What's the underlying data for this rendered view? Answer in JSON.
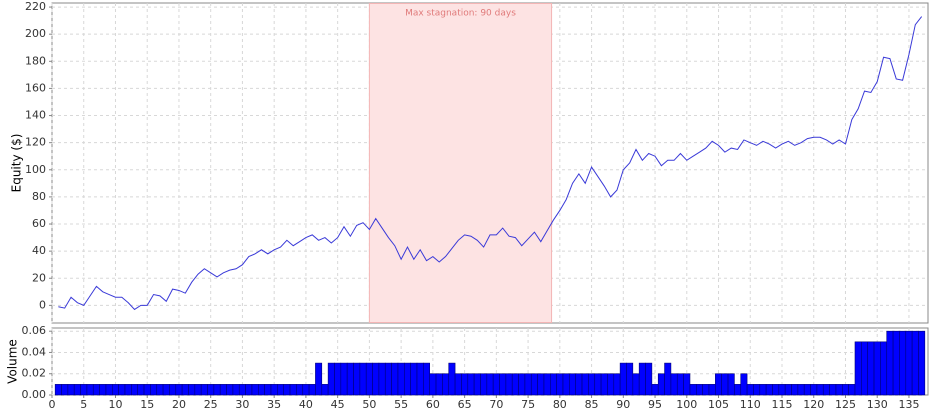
{
  "chart_data": [
    {
      "type": "line",
      "ylabel": "Equity ($)",
      "color": "#3a3ad8",
      "grid": true,
      "highlight": {
        "x": [
          50,
          78.7
        ],
        "label": "Max stagnation: 90 days",
        "color": "#fde3e3"
      },
      "x": [
        1,
        2,
        3,
        4,
        5,
        6,
        7,
        8,
        9,
        10,
        11,
        12,
        13,
        14,
        15,
        16,
        17,
        18,
        19,
        20,
        21,
        22,
        23,
        24,
        25,
        26,
        27,
        28,
        29,
        30,
        31,
        32,
        33,
        34,
        35,
        36,
        37,
        38,
        39,
        40,
        41,
        42,
        43,
        44,
        45,
        46,
        47,
        48,
        49,
        50,
        51,
        52,
        53,
        54,
        55,
        56,
        57,
        58,
        59,
        60,
        61,
        62,
        63,
        64,
        65,
        66,
        67,
        68,
        69,
        70,
        71,
        72,
        73,
        74,
        75,
        76,
        77,
        78,
        79,
        80,
        81,
        82,
        83,
        84,
        85,
        86,
        87,
        88,
        89,
        90,
        91,
        92,
        93,
        94,
        95,
        96,
        97,
        98,
        99,
        100,
        101,
        102,
        103,
        104,
        105,
        106,
        107,
        108,
        109,
        110,
        111,
        112,
        113,
        114,
        115,
        116,
        117,
        118,
        119,
        120,
        121,
        122,
        123,
        124,
        125,
        126,
        127,
        128,
        129,
        130,
        131,
        132,
        133,
        134,
        135,
        136,
        137
      ],
      "values": [
        -1,
        -2,
        6,
        2,
        0,
        7,
        14,
        10,
        8,
        6,
        6,
        2,
        -3,
        0,
        0,
        8,
        7,
        3,
        12,
        11,
        9,
        17,
        23,
        27,
        24,
        21,
        24,
        26,
        27,
        30,
        36,
        38,
        41,
        38,
        41,
        43,
        48,
        44,
        47,
        50,
        52,
        48,
        50,
        46,
        50,
        58,
        51,
        59,
        61,
        56,
        64,
        57,
        50,
        44,
        34,
        43,
        34,
        41,
        33,
        36,
        32,
        36,
        42,
        48,
        52,
        51,
        48,
        43,
        52,
        52,
        57,
        51,
        50,
        44,
        49,
        54,
        47,
        55,
        63,
        70,
        78,
        90,
        97,
        90,
        102,
        95,
        88,
        80,
        85,
        100,
        105,
        115,
        107,
        112,
        110,
        103,
        107,
        107,
        112,
        107,
        110,
        113,
        116,
        121,
        118,
        113,
        116,
        115,
        122,
        120,
        118,
        121,
        119,
        116,
        119,
        121,
        118,
        120,
        123,
        124,
        124,
        122,
        119,
        122,
        119,
        137,
        145,
        158,
        157,
        165,
        183,
        182,
        167,
        166,
        185,
        207,
        213
      ],
      "xlim": [
        0,
        138
      ],
      "ylim": [
        -13,
        223
      ],
      "yticks": [
        0,
        20,
        40,
        60,
        80,
        100,
        120,
        140,
        160,
        180,
        200,
        220
      ]
    },
    {
      "type": "bar",
      "ylabel": "Volume",
      "color": "#0000ff",
      "grid": true,
      "x": [
        1,
        2,
        3,
        4,
        5,
        6,
        7,
        8,
        9,
        10,
        11,
        12,
        13,
        14,
        15,
        16,
        17,
        18,
        19,
        20,
        21,
        22,
        23,
        24,
        25,
        26,
        27,
        28,
        29,
        30,
        31,
        32,
        33,
        34,
        35,
        36,
        37,
        38,
        39,
        40,
        41,
        42,
        43,
        44,
        45,
        46,
        47,
        48,
        49,
        50,
        51,
        52,
        53,
        54,
        55,
        56,
        57,
        58,
        59,
        60,
        61,
        62,
        63,
        64,
        65,
        66,
        67,
        68,
        69,
        70,
        71,
        72,
        73,
        74,
        75,
        76,
        77,
        78,
        79,
        80,
        81,
        82,
        83,
        84,
        85,
        86,
        87,
        88,
        89,
        90,
        91,
        92,
        93,
        94,
        95,
        96,
        97,
        98,
        99,
        100,
        101,
        102,
        103,
        104,
        105,
        106,
        107,
        108,
        109,
        110,
        111,
        112,
        113,
        114,
        115,
        116,
        117,
        118,
        119,
        120,
        121,
        122,
        123,
        124,
        125,
        126,
        127,
        128,
        129,
        130,
        131,
        132,
        133,
        134,
        135,
        136,
        137
      ],
      "values": [
        0.01,
        0.01,
        0.01,
        0.01,
        0.01,
        0.01,
        0.01,
        0.01,
        0.01,
        0.01,
        0.01,
        0.01,
        0.01,
        0.01,
        0.01,
        0.01,
        0.01,
        0.01,
        0.01,
        0.01,
        0.01,
        0.01,
        0.01,
        0.01,
        0.01,
        0.01,
        0.01,
        0.01,
        0.01,
        0.01,
        0.01,
        0.01,
        0.01,
        0.01,
        0.01,
        0.01,
        0.01,
        0.01,
        0.01,
        0.01,
        0.01,
        0.03,
        0.01,
        0.03,
        0.03,
        0.03,
        0.03,
        0.03,
        0.03,
        0.03,
        0.03,
        0.03,
        0.03,
        0.03,
        0.03,
        0.03,
        0.03,
        0.03,
        0.03,
        0.02,
        0.02,
        0.02,
        0.03,
        0.02,
        0.02,
        0.02,
        0.02,
        0.02,
        0.02,
        0.02,
        0.02,
        0.02,
        0.02,
        0.02,
        0.02,
        0.02,
        0.02,
        0.02,
        0.02,
        0.02,
        0.02,
        0.02,
        0.02,
        0.02,
        0.02,
        0.02,
        0.02,
        0.02,
        0.02,
        0.03,
        0.03,
        0.02,
        0.03,
        0.03,
        0.01,
        0.02,
        0.03,
        0.02,
        0.02,
        0.02,
        0.01,
        0.01,
        0.01,
        0.01,
        0.02,
        0.02,
        0.02,
        0.01,
        0.02,
        0.01,
        0.01,
        0.01,
        0.01,
        0.01,
        0.01,
        0.01,
        0.01,
        0.01,
        0.01,
        0.01,
        0.01,
        0.01,
        0.01,
        0.01,
        0.01,
        0.01,
        0.05,
        0.05,
        0.05,
        0.05,
        0.05,
        0.06,
        0.06,
        0.06,
        0.06,
        0.06,
        0.06
      ],
      "xlim": [
        0,
        138
      ],
      "ylim": [
        0,
        0.063
      ],
      "yticks": [
        {
          "value": 0,
          "label": "0.00"
        },
        0.02,
        0.04,
        0.06
      ],
      "xticks": [
        0,
        5,
        10,
        15,
        20,
        25,
        30,
        35,
        40,
        45,
        50,
        55,
        60,
        65,
        70,
        75,
        80,
        85,
        90,
        95,
        100,
        105,
        110,
        115,
        120,
        125,
        130,
        135
      ]
    }
  ]
}
